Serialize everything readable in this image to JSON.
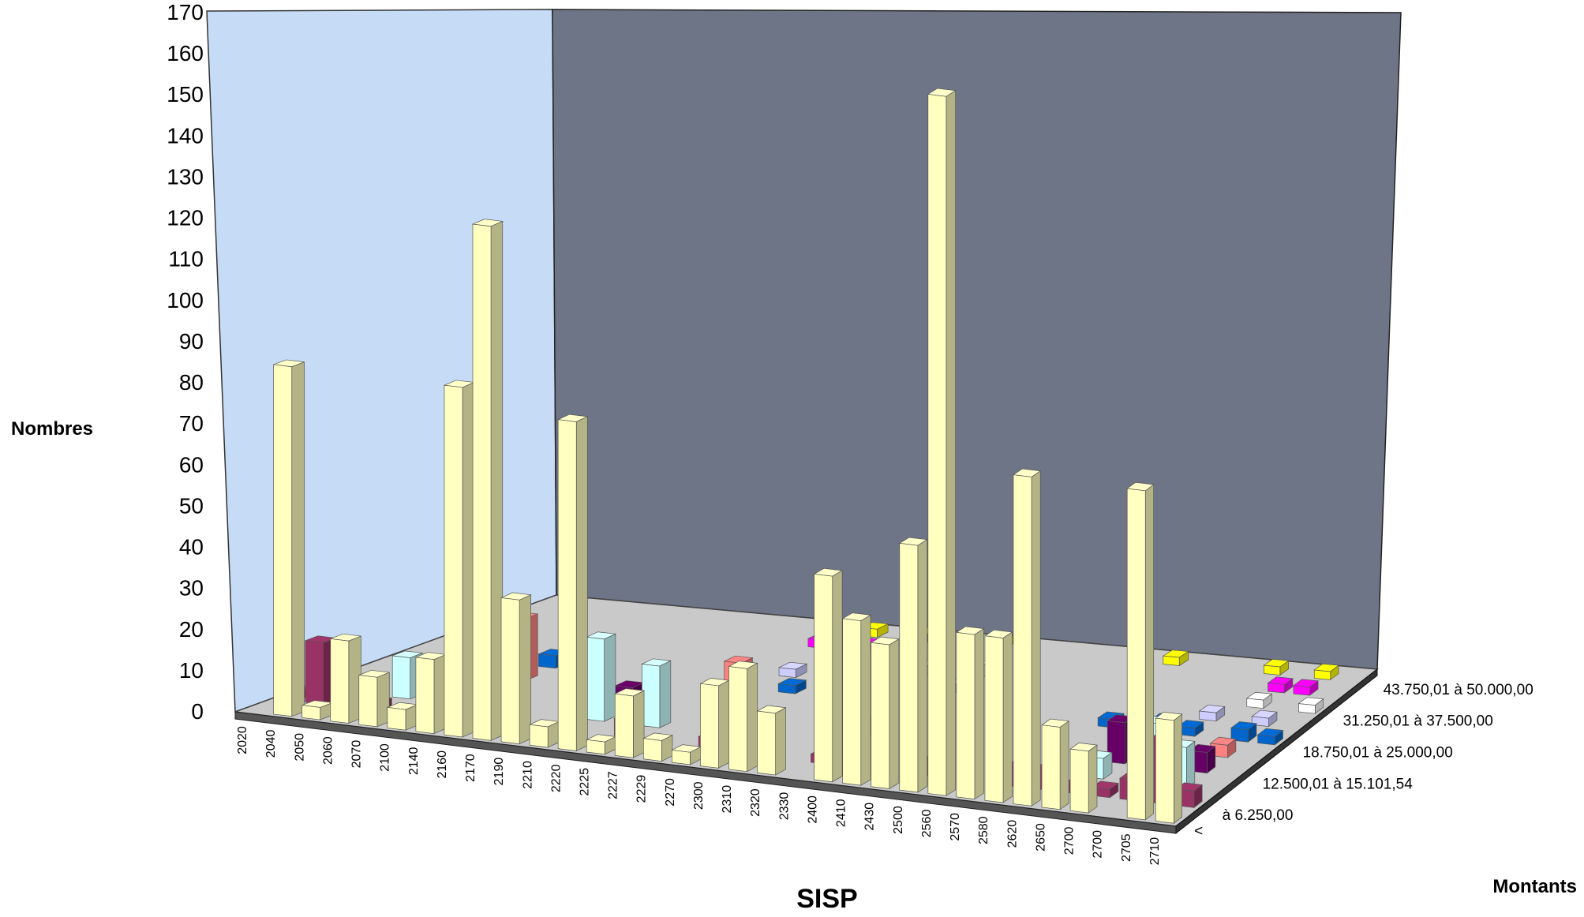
{
  "chart_data": {
    "type": "bar",
    "subtype": "3d-column",
    "title": "",
    "xlabel": "SISP",
    "ylabel": "Nombres",
    "zlabel": "Montants",
    "ylim": [
      0,
      170
    ],
    "y_ticks": [
      "0",
      "10",
      "20",
      "30",
      "40",
      "50",
      "60",
      "70",
      "80",
      "90",
      "100",
      "110",
      "120",
      "130",
      "140",
      "150",
      "160",
      "170"
    ],
    "categories": [
      "2020",
      "2040",
      "2050",
      "2060",
      "2070",
      "2100",
      "2140",
      "2160",
      "2170",
      "2190",
      "2210",
      "2220",
      "2225",
      "2227",
      "2229",
      "2270",
      "2300",
      "2310",
      "2320",
      "2330",
      "2400",
      "2410",
      "2430",
      "2500",
      "2560",
      "2570",
      "2580",
      "2620",
      "2650",
      "2700",
      "2700",
      "2705",
      "2710"
    ],
    "depth_tick_labels": [
      "<",
      "à 6.250,00",
      "12.500,01 à 15.101,54",
      "18.750,01 à 25.000,00",
      "31.250,01 à 37.500,00",
      "43.750,01 à 50.000,00"
    ],
    "series": [
      {
        "label": "à 6.250,00",
        "color": "#ffffc0",
        "values": [
          0,
          85,
          3,
          20,
          12,
          5,
          18,
          85,
          125,
          35,
          5,
          80,
          3,
          15,
          5,
          3,
          20,
          25,
          15,
          0,
          50,
          40,
          35,
          60,
          170,
          40,
          40,
          80,
          20,
          15,
          0,
          80,
          25
        ]
      },
      {
        "label": "12.500,01 à 15.101,54",
        "color": "#993366",
        "values": [
          2,
          15,
          0,
          2,
          0,
          0,
          15,
          0,
          0,
          0,
          0,
          0,
          5,
          0,
          0,
          3,
          0,
          3,
          0,
          2,
          12,
          0,
          0,
          4,
          0,
          0,
          5,
          5,
          2,
          2,
          5,
          15,
          4
        ]
      },
      {
        "label": "",
        "color": "#ccffff",
        "values": [
          0,
          0,
          0,
          10,
          0,
          5,
          0,
          0,
          0,
          0,
          20,
          0,
          15,
          0,
          0,
          5,
          0,
          0,
          0,
          0,
          0,
          0,
          0,
          0,
          0,
          0,
          0,
          0,
          5,
          0,
          15,
          10,
          0
        ]
      },
      {
        "label": "",
        "color": "#660066",
        "values": [
          0,
          0,
          0,
          0,
          15,
          5,
          0,
          0,
          0,
          0,
          5,
          0,
          0,
          0,
          5,
          0,
          0,
          0,
          0,
          3,
          0,
          0,
          0,
          0,
          0,
          0,
          0,
          0,
          10,
          3,
          0,
          5,
          0
        ]
      },
      {
        "label": "",
        "color": "#ff8080",
        "values": [
          0,
          0,
          0,
          0,
          0,
          15,
          0,
          0,
          0,
          0,
          0,
          0,
          0,
          10,
          0,
          0,
          0,
          0,
          0,
          0,
          0,
          0,
          0,
          0,
          0,
          0,
          0,
          0,
          5,
          0,
          0,
          3,
          0
        ]
      },
      {
        "label": "",
        "color": "#0066cc",
        "values": [
          0,
          0,
          0,
          0,
          0,
          3,
          0,
          0,
          0,
          0,
          0,
          0,
          2,
          0,
          2,
          0,
          0,
          0,
          0,
          0,
          0,
          0,
          0,
          0,
          0,
          0,
          2,
          0,
          3,
          2,
          0,
          3,
          2
        ]
      },
      {
        "label": "18.750,01 à 25.000,00",
        "color": "#ccccff",
        "values": [
          0,
          0,
          0,
          0,
          0,
          0,
          0,
          0,
          0,
          0,
          0,
          0,
          0,
          2,
          0,
          2,
          0,
          0,
          0,
          2,
          0,
          0,
          0,
          0,
          0,
          0,
          0,
          0,
          0,
          2,
          0,
          2,
          0
        ]
      },
      {
        "label": "",
        "color": "#ffffff",
        "values": [
          0,
          0,
          0,
          0,
          0,
          0,
          0,
          0,
          0,
          0,
          0,
          0,
          0,
          0,
          2,
          0,
          0,
          2,
          0,
          3,
          0,
          0,
          0,
          0,
          0,
          0,
          0,
          0,
          0,
          0,
          2,
          0,
          2
        ]
      },
      {
        "label": "31.250,01 à 37.500,00",
        "color": "#ff00ff",
        "values": [
          0,
          0,
          0,
          0,
          0,
          0,
          0,
          0,
          0,
          0,
          0,
          0,
          2,
          2,
          2,
          0,
          0,
          0,
          0,
          0,
          0,
          0,
          0,
          0,
          0,
          0,
          0,
          0,
          0,
          0,
          2,
          2,
          0
        ]
      },
      {
        "label": "43.750,01 à 50.000,00",
        "color": "#ffff00",
        "values": [
          0,
          0,
          0,
          0,
          0,
          0,
          0,
          0,
          0,
          0,
          0,
          0,
          2,
          2,
          0,
          2,
          0,
          0,
          2,
          0,
          0,
          0,
          0,
          0,
          0,
          2,
          0,
          0,
          0,
          2,
          0,
          2,
          0
        ]
      }
    ],
    "colors": {
      "side_wall": "#c6dcf6",
      "back_wall": "#6e7587",
      "floor": "#c9c9c9",
      "floor_edge": "#555555",
      "axis_line": "#000000"
    },
    "grid": false,
    "legend": "none"
  }
}
